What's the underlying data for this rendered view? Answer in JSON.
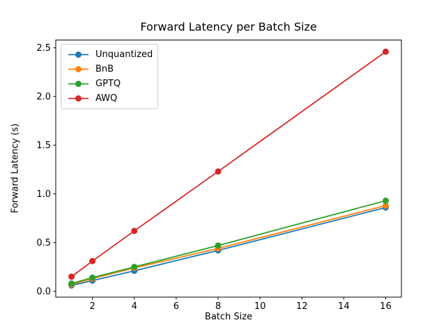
{
  "figure": {
    "title": "Forward Latency per Batch Size",
    "xlabel": "Batch Size",
    "ylabel": "Forward Latency (s)"
  },
  "chart_data": {
    "type": "line",
    "title": "Forward Latency per Batch Size",
    "xlabel": "Batch Size",
    "ylabel": "Forward Latency (s)",
    "x": [
      1,
      2,
      4,
      8,
      16
    ],
    "series": [
      {
        "name": "Unquantized",
        "color": "#1f77b4",
        "values": [
          0.06,
          0.11,
          0.21,
          0.42,
          0.86
        ]
      },
      {
        "name": "BnB",
        "color": "#ff7f0e",
        "values": [
          0.07,
          0.13,
          0.24,
          0.44,
          0.88
        ]
      },
      {
        "name": "GPTQ",
        "color": "#2ca02c",
        "values": [
          0.08,
          0.14,
          0.25,
          0.47,
          0.93
        ]
      },
      {
        "name": "AWQ",
        "color": "#d62728",
        "values": [
          0.15,
          0.31,
          0.62,
          1.23,
          2.46
        ]
      }
    ],
    "xlim": [
      0.25,
      16.75
    ],
    "ylim": [
      -0.06,
      2.58
    ],
    "xticks": [
      2,
      4,
      6,
      8,
      10,
      12,
      14,
      16
    ],
    "yticks": [
      0.0,
      0.5,
      1.0,
      1.5,
      2.0,
      2.5
    ],
    "grid": false,
    "legend_position": "upper left",
    "marker": "o",
    "frame_color": "#000000",
    "background_color": "#ffffff"
  }
}
